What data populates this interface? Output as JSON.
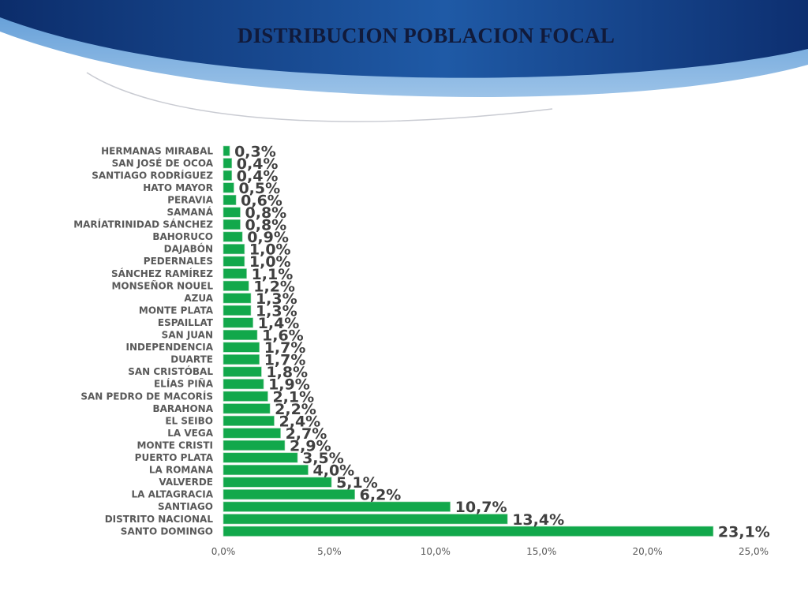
{
  "colors": {
    "bar": "#12a84b",
    "header_dark": "#0c2d6b",
    "header_light": "#4f8fd0",
    "title": "#111a3a"
  },
  "chart_data": {
    "type": "bar",
    "orientation": "horizontal",
    "title": "DISTRIBUCION POBLACION FOCAL",
    "categories": [
      "HERMANAS MIRABAL",
      "SAN JOSÉ DE OCOA",
      "SANTIAGO RODRÍGUEZ",
      "HATO MAYOR",
      "PERAVIA",
      "SAMANÁ",
      "MARÍATRINIDAD SÁNCHEZ",
      "BAHORUCO",
      "DAJABÓN",
      "PEDERNALES",
      "SÁNCHEZ RAMÍREZ",
      "MONSEÑOR NOUEL",
      "AZUA",
      "MONTE PLATA",
      "ESPAILLAT",
      "SAN JUAN",
      "INDEPENDENCIA",
      "DUARTE",
      "SAN CRISTÓBAL",
      "ELÍAS PIÑA",
      "SAN PEDRO DE MACORÍS",
      "BARAHONA",
      "EL SEIBO",
      "LA VEGA",
      "MONTE CRISTI",
      "PUERTO PLATA",
      "LA ROMANA",
      "VALVERDE",
      "LA ALTAGRACIA",
      "SANTIAGO",
      "DISTRITO NACIONAL",
      "SANTO DOMINGO"
    ],
    "values": [
      0.3,
      0.4,
      0.4,
      0.5,
      0.6,
      0.8,
      0.8,
      0.9,
      1.0,
      1.0,
      1.1,
      1.2,
      1.3,
      1.3,
      1.4,
      1.6,
      1.7,
      1.7,
      1.8,
      1.9,
      2.1,
      2.2,
      2.4,
      2.7,
      2.9,
      3.5,
      4.0,
      5.1,
      6.2,
      10.7,
      13.4,
      23.1
    ],
    "data_labels": [
      "0,3%",
      "0,4%",
      "0,4%",
      "0,5%",
      "0,6%",
      "0,8%",
      "0,8%",
      "0,9%",
      "1,0%",
      "1,0%",
      "1,1%",
      "1,2%",
      "1,3%",
      "1,3%",
      "1,4%",
      "1,6%",
      "1,7%",
      "1,7%",
      "1,8%",
      "1,9%",
      "2,1%",
      "2,2%",
      "2,4%",
      "2,7%",
      "2,9%",
      "3,5%",
      "4,0%",
      "5,1%",
      "6,2%",
      "10,7%",
      "13,4%",
      "23,1%"
    ],
    "xlim": [
      0,
      25
    ],
    "x_ticks": [
      0,
      5,
      10,
      15,
      20,
      25
    ],
    "x_tick_labels": [
      "0,0%",
      "5,0%",
      "10,0%",
      "15,0%",
      "20,0%",
      "25,0%"
    ],
    "grid": false,
    "legend": "none"
  }
}
